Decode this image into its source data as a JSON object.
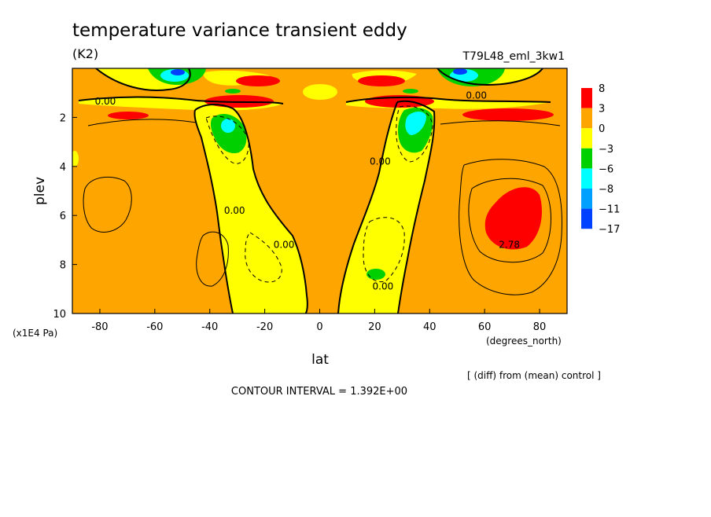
{
  "title": "temperature variance transient eddy",
  "units": "(K2)",
  "run_label": "T79L48_eml_3kw1",
  "note": "[ (diff) from (mean) control ]",
  "contour_interval_text": "CONTOUR INTERVAL = 1.392E+00",
  "colors": {
    "c8": "#ff0000",
    "c3": "#ffa500",
    "c0": "#ffff00",
    "cm3": "#00d000",
    "cm6": "#00ffff",
    "cm8": "#00a0ff",
    "cm11": "#0040ff",
    "line": "#000000"
  },
  "chart_data": {
    "type": "heatmap",
    "title": "temperature variance transient eddy",
    "subtitle": "(K2)",
    "xlabel": "lat",
    "x_units": "(degrees_north)",
    "ylabel": "plev",
    "y_units": "(x1E4 Pa)",
    "xlim": [
      -90,
      90
    ],
    "ylim": [
      10,
      0
    ],
    "x_ticks": [
      -80,
      -60,
      -40,
      -20,
      0,
      20,
      40,
      60,
      80
    ],
    "y_ticks": [
      2,
      4,
      6,
      8,
      10
    ],
    "legend": {
      "placement": "right",
      "levels": [
        "8",
        "3",
        "0",
        "−3",
        "−6",
        "−8",
        "−11",
        "−17"
      ],
      "colors": [
        "#ff0000",
        "#ffa500",
        "#ffff00",
        "#00d000",
        "#00ffff",
        "#00a0ff",
        "#0040ff"
      ]
    },
    "contour_labels": [
      {
        "text": "0.00",
        "lat": -78,
        "plev": 1.35
      },
      {
        "text": "0.00",
        "lat": 57,
        "plev": 1.1
      },
      {
        "text": "0.00",
        "lat": 22,
        "plev": 3.8
      },
      {
        "text": "0.00",
        "lat": -31,
        "plev": 5.8
      },
      {
        "text": "0.00",
        "lat": -13,
        "plev": 7.2
      },
      {
        "text": "0.00",
        "lat": 23,
        "plev": 8.9
      },
      {
        "text": "2.78",
        "lat": 69,
        "plev": 7.2
      }
    ],
    "background_level": "0 to 3",
    "regions": [
      {
        "value_range": "3 to 8",
        "note": "positive maximum near 68N, plev 5-7.5"
      },
      {
        "value_range": "-17 to -3",
        "note": "minima near 35S and 32N, plev 1.5-3.5, and near the top at 60S/50N"
      }
    ]
  }
}
